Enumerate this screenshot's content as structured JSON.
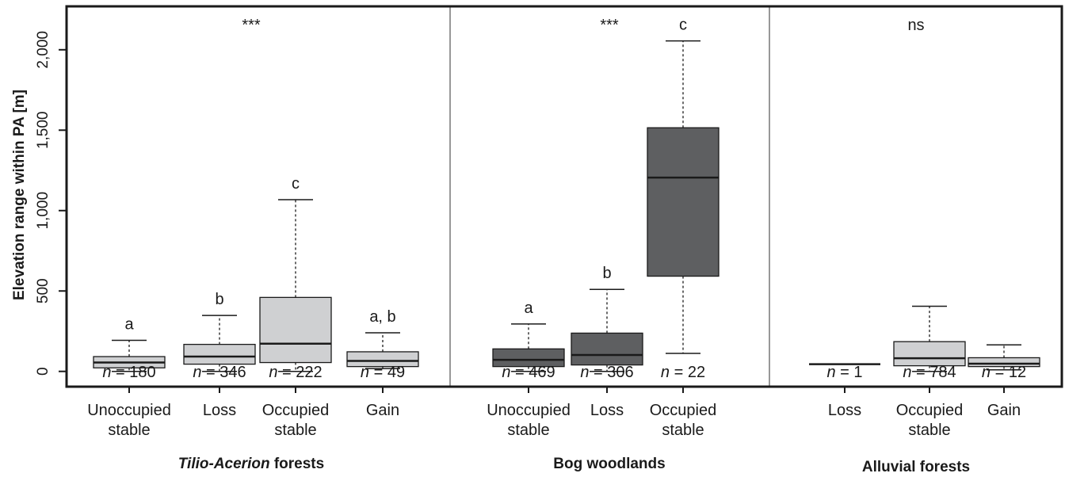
{
  "chart_data": {
    "type": "box",
    "ylabel": "Elevation range within PA [m]",
    "ylim": [
      -95,
      2270
    ],
    "yticks": [
      0,
      500,
      1000,
      1500,
      2000
    ],
    "ytick_labels": [
      "0",
      "500",
      "1,000",
      "1,500",
      "2,000"
    ],
    "colors": {
      "light": "#cfd0d2",
      "dark": "#5e5f61",
      "axis": "#1a1a1a",
      "divider": "#777777"
    },
    "panels": [
      {
        "group_label_italic": "Tilio-Acerion",
        "group_label_rest": " forests",
        "significance": "***",
        "boxes": [
          {
            "category": [
              "Unoccupied",
              "stable"
            ],
            "n": "180",
            "letter": "a",
            "fill": "light",
            "min": 0,
            "q1": 22,
            "median": 55,
            "q3": 92,
            "max": 193
          },
          {
            "category": [
              "Loss"
            ],
            "n": "346",
            "letter": "b",
            "fill": "light",
            "min": 0,
            "q1": 45,
            "median": 92,
            "q3": 168,
            "max": 348
          },
          {
            "category": [
              "Occupied",
              "stable"
            ],
            "n": "222",
            "letter": "c",
            "fill": "light",
            "min": 0,
            "q1": 55,
            "median": 172,
            "q3": 460,
            "max": 1068
          },
          {
            "category": [
              "Gain"
            ],
            "n": "49",
            "letter": "a, b",
            "fill": "light",
            "min": 18,
            "q1": 30,
            "median": 65,
            "q3": 122,
            "max": 240
          }
        ]
      },
      {
        "group_label_italic": "",
        "group_label_rest": "Bog woodlands",
        "significance": "***",
        "boxes": [
          {
            "category": [
              "Unoccupied",
              "stable"
            ],
            "n": "469",
            "letter": "a",
            "fill": "dark",
            "min": 0,
            "q1": 30,
            "median": 72,
            "q3": 140,
            "max": 295
          },
          {
            "category": [
              "Loss"
            ],
            "n": "306",
            "letter": "b",
            "fill": "dark",
            "min": 0,
            "q1": 40,
            "median": 102,
            "q3": 238,
            "max": 510
          },
          {
            "category": [
              "Occupied",
              "stable"
            ],
            "n": "22",
            "letter": "c",
            "fill": "dark",
            "min": 112,
            "q1": 592,
            "median": 1205,
            "q3": 1515,
            "max": 2055
          }
        ]
      },
      {
        "group_label_italic": "",
        "group_label_rest": "Alluvial forests",
        "significance": "ns",
        "boxes": [
          {
            "category": [
              "Loss"
            ],
            "n": "1",
            "letter": "",
            "fill": "none",
            "min": 45,
            "q1": 45,
            "median": 45,
            "q3": 45,
            "max": 45
          },
          {
            "category": [
              "Occupied",
              "stable"
            ],
            "n": "784",
            "letter": "",
            "fill": "light",
            "min": 0,
            "q1": 35,
            "median": 82,
            "q3": 185,
            "max": 405
          },
          {
            "category": [
              "Gain"
            ],
            "n": "12",
            "letter": "",
            "fill": "light",
            "min": 10,
            "q1": 30,
            "median": 48,
            "q3": 85,
            "max": 165
          }
        ]
      }
    ]
  }
}
